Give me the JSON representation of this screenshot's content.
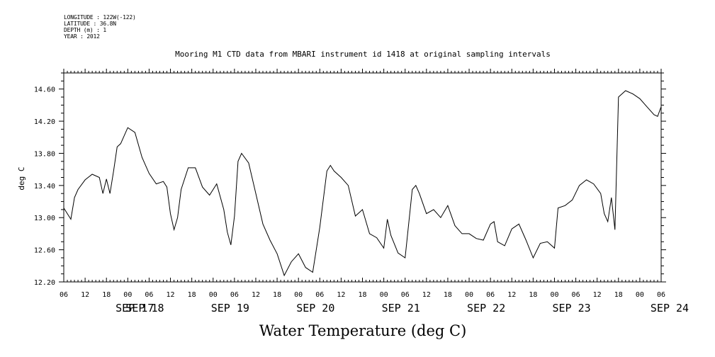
{
  "header": {
    "lines": [
      "LONGITUDE : 122W(-122)",
      "LATITUDE : 36.8N",
      "DEPTH (m) : 1",
      "YEAR : 2012"
    ]
  },
  "chart_data": {
    "type": "line",
    "title": "Mooring M1 CTD data from MBARI instrument id 1418 at original sampling intervals",
    "xlabel": "Water Temperature (deg C)",
    "ylabel": "deg C",
    "xlim": [
      "2012-09-17T06:00",
      "2012-09-24T06:00"
    ],
    "ylim": [
      12.2,
      14.8
    ],
    "y_ticks": [
      "12.20",
      "12.60",
      "13.00",
      "13.40",
      "13.80",
      "14.20",
      "14.60"
    ],
    "x_hour_ticks": [
      "06",
      "12",
      "18",
      "00",
      "06",
      "12",
      "18",
      "00",
      "06",
      "12",
      "18",
      "00",
      "06",
      "12",
      "18",
      "00",
      "06",
      "12",
      "18",
      "00",
      "06",
      "12",
      "18",
      "00",
      "06",
      "12",
      "18",
      "00",
      "06"
    ],
    "x_day_labels": [
      "SEP 17",
      "SEP 18",
      "SEP 19",
      "SEP 20",
      "SEP 21",
      "SEP 22",
      "SEP 23",
      "SEP 24"
    ],
    "series": [
      {
        "x": [
          "2012-09-17T06:00",
          "2012-09-17T07:00",
          "2012-09-17T08:00",
          "2012-09-17T09:00",
          "2012-09-17T10:00",
          "2012-09-17T12:00",
          "2012-09-17T14:00",
          "2012-09-17T16:00",
          "2012-09-17T17:00",
          "2012-09-17T18:00",
          "2012-09-17T19:00",
          "2012-09-17T20:00",
          "2012-09-17T21:00",
          "2012-09-17T22:00",
          "2012-09-18T00:00",
          "2012-09-18T02:00",
          "2012-09-18T04:00",
          "2012-09-18T06:00",
          "2012-09-18T08:00",
          "2012-09-18T10:00",
          "2012-09-18T11:00",
          "2012-09-18T12:00",
          "2012-09-18T13:00",
          "2012-09-18T14:00",
          "2012-09-18T15:00",
          "2012-09-18T17:00",
          "2012-09-18T19:00",
          "2012-09-18T21:00",
          "2012-09-18T23:00",
          "2012-09-19T01:00",
          "2012-09-19T03:00",
          "2012-09-19T04:00",
          "2012-09-19T05:00",
          "2012-09-19T06:00",
          "2012-09-19T07:00",
          "2012-09-19T08:00",
          "2012-09-19T10:00",
          "2012-09-19T12:00",
          "2012-09-19T14:00",
          "2012-09-19T16:00",
          "2012-09-19T18:00",
          "2012-09-19T20:00",
          "2012-09-19T22:00",
          "2012-09-20T00:00",
          "2012-09-20T02:00",
          "2012-09-20T04:00",
          "2012-09-20T06:00",
          "2012-09-20T08:00",
          "2012-09-20T09:00",
          "2012-09-20T10:00",
          "2012-09-20T12:00",
          "2012-09-20T14:00",
          "2012-09-20T16:00",
          "2012-09-20T18:00",
          "2012-09-20T20:00",
          "2012-09-20T22:00",
          "2012-09-21T00:00",
          "2012-09-21T01:00",
          "2012-09-21T02:00",
          "2012-09-21T04:00",
          "2012-09-21T06:00",
          "2012-09-21T08:00",
          "2012-09-21T09:00",
          "2012-09-21T10:00",
          "2012-09-21T12:00",
          "2012-09-21T14:00",
          "2012-09-21T16:00",
          "2012-09-21T18:00",
          "2012-09-21T20:00",
          "2012-09-21T22:00",
          "2012-09-22T00:00",
          "2012-09-22T02:00",
          "2012-09-22T04:00",
          "2012-09-22T06:00",
          "2012-09-22T07:00",
          "2012-09-22T08:00",
          "2012-09-22T10:00",
          "2012-09-22T12:00",
          "2012-09-22T14:00",
          "2012-09-22T16:00",
          "2012-09-22T18:00",
          "2012-09-22T20:00",
          "2012-09-22T22:00",
          "2012-09-23T00:00",
          "2012-09-23T01:00",
          "2012-09-23T03:00",
          "2012-09-23T05:00",
          "2012-09-23T07:00",
          "2012-09-23T09:00",
          "2012-09-23T11:00",
          "2012-09-23T13:00",
          "2012-09-23T14:00",
          "2012-09-23T15:00",
          "2012-09-23T16:00",
          "2012-09-23T17:00",
          "2012-09-23T18:00",
          "2012-09-23T20:00",
          "2012-09-23T22:00",
          "2012-09-24T00:00",
          "2012-09-24T02:00",
          "2012-09-24T04:00",
          "2012-09-24T05:00",
          "2012-09-24T06:00"
        ],
        "y": [
          13.12,
          13.05,
          12.98,
          13.25,
          13.35,
          13.47,
          13.54,
          13.5,
          13.3,
          13.48,
          13.3,
          13.58,
          13.88,
          13.92,
          14.12,
          14.06,
          13.75,
          13.55,
          13.42,
          13.45,
          13.38,
          13.05,
          12.85,
          13.0,
          13.35,
          13.62,
          13.62,
          13.38,
          13.28,
          13.42,
          13.1,
          12.82,
          12.66,
          13.02,
          13.7,
          13.8,
          13.68,
          13.3,
          12.92,
          12.72,
          12.55,
          12.28,
          12.45,
          12.55,
          12.38,
          12.32,
          12.88,
          13.58,
          13.65,
          13.58,
          13.5,
          13.4,
          13.02,
          13.1,
          12.8,
          12.75,
          12.62,
          12.98,
          12.78,
          12.56,
          12.5,
          13.35,
          13.4,
          13.3,
          13.05,
          13.1,
          13.0,
          13.15,
          12.9,
          12.8,
          12.8,
          12.74,
          12.72,
          12.92,
          12.95,
          12.7,
          12.65,
          12.86,
          12.92,
          12.72,
          12.5,
          12.68,
          12.7,
          12.62,
          13.12,
          13.15,
          13.22,
          13.4,
          13.47,
          13.42,
          13.3,
          13.05,
          12.95,
          13.25,
          12.85,
          14.5,
          14.58,
          14.54,
          14.48,
          14.38,
          14.28,
          14.26,
          14.38
        ]
      }
    ]
  }
}
